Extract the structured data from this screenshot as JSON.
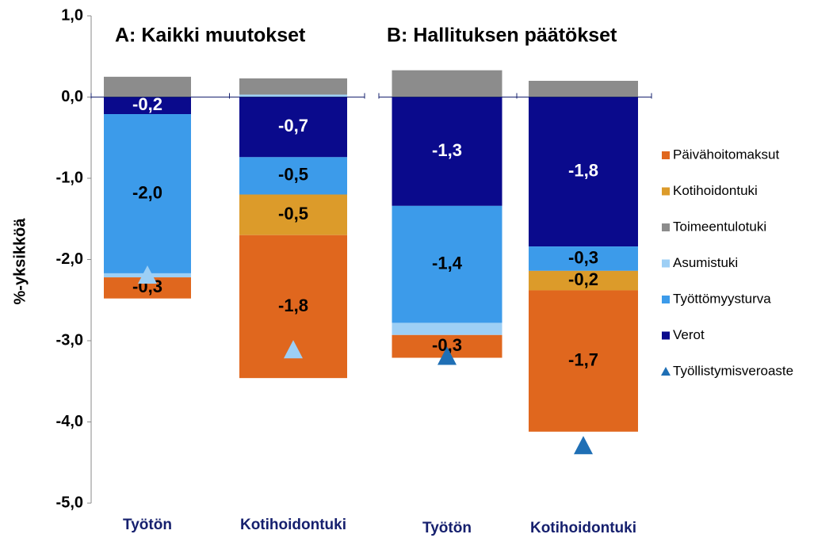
{
  "chart_data": {
    "type": "stacked_bar",
    "ylabel": "%-yksikköä",
    "panels": [
      {
        "title": "A: Kaikki muutokset"
      },
      {
        "title": "B: Hallituksen päätökset"
      }
    ],
    "categories": [
      "Työtön",
      "Kotihoidontuki",
      "Työtön",
      "Kotihoidontuki"
    ],
    "ylim": [
      -5,
      1
    ],
    "yticks": [
      {
        "value": 1,
        "label": "1,0"
      },
      {
        "value": 0,
        "label": "0,0"
      },
      {
        "value": -1,
        "label": "-1,0"
      },
      {
        "value": -2,
        "label": "-2,0"
      },
      {
        "value": -3,
        "label": "-3,0"
      },
      {
        "value": -4,
        "label": "-4,0"
      },
      {
        "value": -5,
        "label": "-5,0"
      }
    ],
    "series": [
      {
        "name": "Päivähoitomaksut",
        "color": "#e0671e",
        "values": [
          -0.26,
          -1.76,
          -0.28,
          -1.74
        ],
        "value_labels": [
          "-0,3",
          "-1,8",
          "-0,3",
          "-1,7"
        ]
      },
      {
        "name": "Kotihoidontuki",
        "color": "#dc9b2a",
        "values": [
          0,
          -0.5,
          0,
          -0.24
        ],
        "value_labels": [
          null,
          "-0,5",
          null,
          "-0,2"
        ]
      },
      {
        "name": "Toimeentulotuki",
        "color": "#8c8c8c",
        "values": [
          0.25,
          0.2,
          0.33,
          0.2
        ],
        "value_labels": [
          null,
          null,
          null,
          null
        ]
      },
      {
        "name": "Asumistuki",
        "color": "#9dcff5",
        "values": [
          -0.05,
          0.03,
          -0.15,
          0
        ],
        "value_labels": [
          null,
          null,
          null,
          null
        ]
      },
      {
        "name": "Työttömyysturva",
        "color": "#3c9bea",
        "values": [
          -1.96,
          -0.46,
          -1.44,
          -0.3
        ],
        "value_labels": [
          "-2,0",
          "-0,5",
          "-1,4",
          "-0,3"
        ]
      },
      {
        "name": "Verot",
        "color": "#0a0a8c",
        "values": [
          -0.21,
          -0.74,
          -1.34,
          -1.84
        ],
        "value_labels": [
          "-0,2",
          "-0,7",
          "-1,3",
          "-1,8"
        ]
      }
    ],
    "markers": {
      "name": "Työllistymisveroaste",
      "color": "#1f6fb5",
      "point_colors": [
        "#9dcff5",
        "#9dcff5",
        "#1f6fb5",
        "#1f6fb5"
      ],
      "values": [
        -2.2,
        -3.12,
        -3.2,
        -4.3
      ]
    }
  }
}
